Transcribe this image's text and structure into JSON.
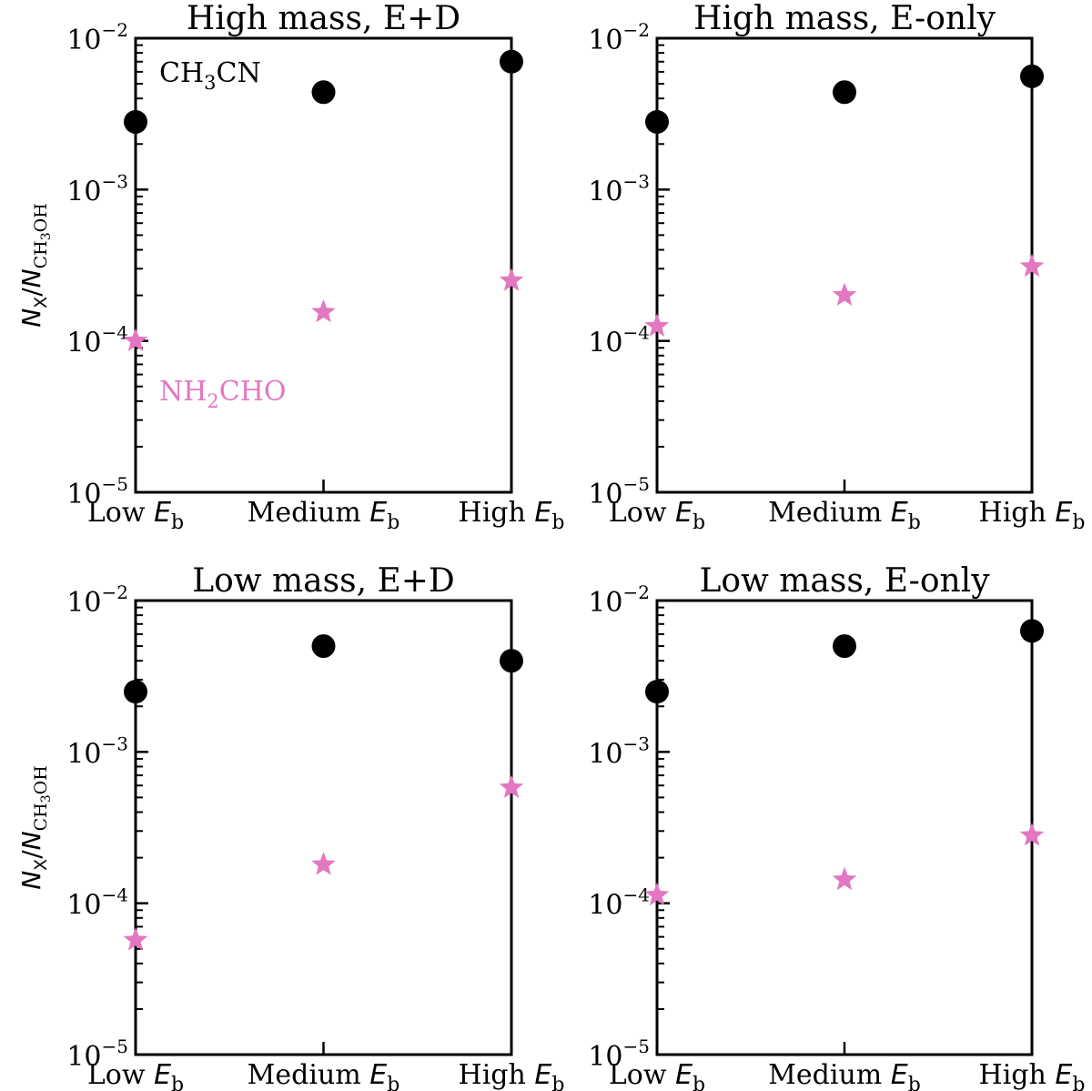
{
  "chart_data": [
    {
      "type": "scatter",
      "title": "High mass, E+D",
      "categories": [
        "Low",
        "Medium",
        "High"
      ],
      "category_suffix": "E",
      "category_suffix_sub": "b",
      "yscale": "log",
      "ylim": [
        1e-05,
        0.01
      ],
      "ylabel": "N_X/N_CH3OH",
      "series": [
        {
          "name": "CH3CN",
          "marker": "circle",
          "color": "#000000",
          "values": [
            0.0028,
            0.0044,
            0.007
          ]
        },
        {
          "name": "NH2CHO",
          "marker": "star",
          "color": "#e377c2",
          "values": [
            0.0001,
            0.000155,
            0.00025
          ]
        }
      ],
      "annotations": [
        {
          "text": "CH3CN",
          "color": "#000000",
          "display": {
            "pre": "CH",
            "sub": "3",
            "post": "CN"
          }
        },
        {
          "text": "NH2CHO",
          "color": "#e377c2",
          "display": {
            "pre": "NH",
            "sub": "2",
            "post": "CHO"
          }
        }
      ]
    },
    {
      "type": "scatter",
      "title": "High mass, E-only",
      "categories": [
        "Low",
        "Medium",
        "High"
      ],
      "category_suffix": "E",
      "category_suffix_sub": "b",
      "yscale": "log",
      "ylim": [
        1e-05,
        0.01
      ],
      "ylabel": "",
      "series": [
        {
          "name": "CH3CN",
          "marker": "circle",
          "color": "#000000",
          "values": [
            0.0028,
            0.0044,
            0.0056
          ]
        },
        {
          "name": "NH2CHO",
          "marker": "star",
          "color": "#e377c2",
          "values": [
            0.000125,
            0.0002,
            0.00031
          ]
        }
      ],
      "annotations": []
    },
    {
      "type": "scatter",
      "title": "Low mass, E+D",
      "categories": [
        "Low",
        "Medium",
        "High"
      ],
      "category_suffix": "E",
      "category_suffix_sub": "b",
      "yscale": "log",
      "ylim": [
        1e-05,
        0.01
      ],
      "ylabel": "N_X/N_CH3OH",
      "series": [
        {
          "name": "CH3CN",
          "marker": "circle",
          "color": "#000000",
          "values": [
            0.0025,
            0.005,
            0.004
          ]
        },
        {
          "name": "NH2CHO",
          "marker": "star",
          "color": "#e377c2",
          "values": [
            5.7e-05,
            0.00018,
            0.00058
          ]
        }
      ],
      "annotations": []
    },
    {
      "type": "scatter",
      "title": "Low mass, E-only",
      "categories": [
        "Low",
        "Medium",
        "High"
      ],
      "category_suffix": "E",
      "category_suffix_sub": "b",
      "yscale": "log",
      "ylim": [
        1e-05,
        0.01
      ],
      "ylabel": "",
      "series": [
        {
          "name": "CH3CN",
          "marker": "circle",
          "color": "#000000",
          "values": [
            0.0025,
            0.005,
            0.0063
          ]
        },
        {
          "name": "NH2CHO",
          "marker": "star",
          "color": "#e377c2",
          "values": [
            0.000113,
            0.000143,
            0.00028
          ]
        }
      ],
      "annotations": []
    }
  ],
  "ylabel_display": {
    "main": "N",
    "sub1": "X",
    "slash": "/",
    "main2": "N",
    "sub2": "CH",
    "sub2_sub": "3",
    "sub2_post": "OH"
  },
  "ytick_labels": [
    {
      "base": "10",
      "exp": "−2",
      "value": 0.01
    },
    {
      "base": "10",
      "exp": "−3",
      "value": 0.001
    },
    {
      "base": "10",
      "exp": "−4",
      "value": 0.0001
    },
    {
      "base": "10",
      "exp": "−5",
      "value": 1e-05
    }
  ]
}
